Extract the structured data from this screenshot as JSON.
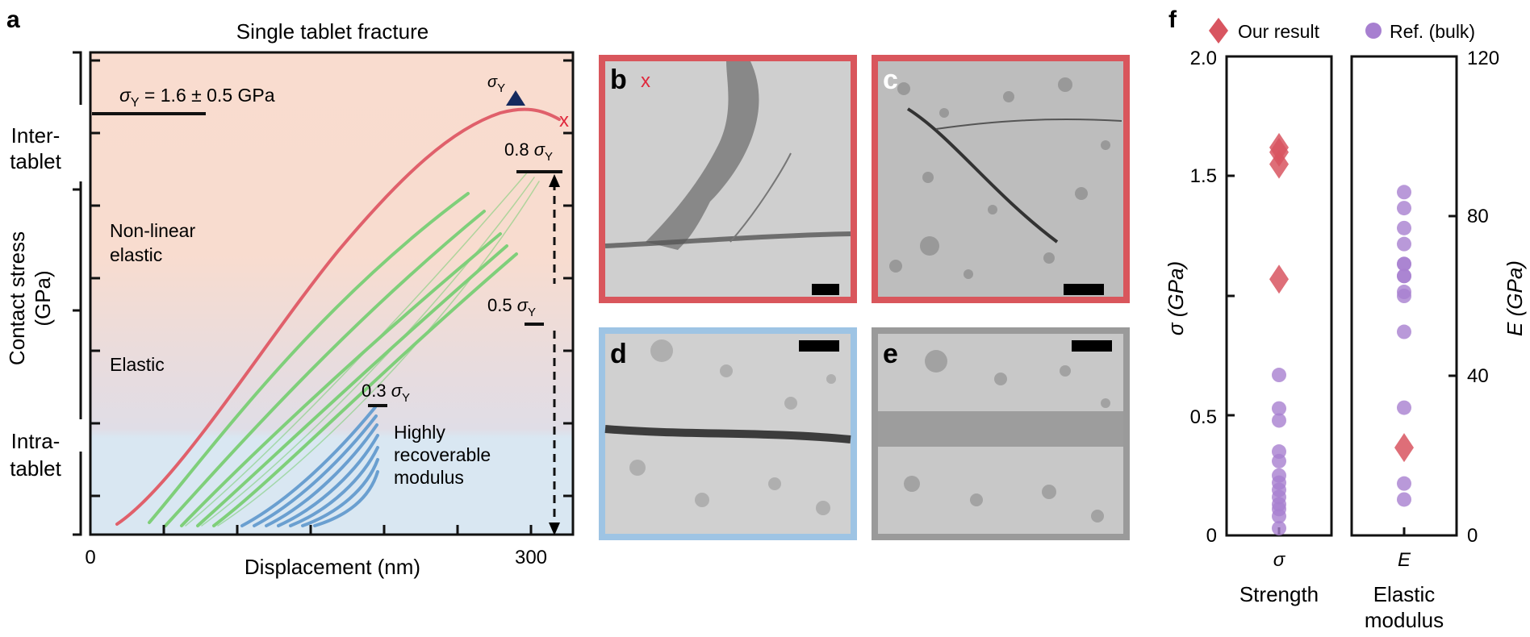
{
  "panel_a": {
    "letter": "a",
    "title": "Single tablet fracture",
    "xlabel": "Displacement (nm)",
    "ylabel_line1": "Contact stress",
    "ylabel_line2": "(GPa)",
    "x_ticks": [
      "0",
      "300"
    ],
    "sigma_y_value": "σY = 1.6 ± 0.5 GPa",
    "sigma_y_value_main": "σ",
    "sigma_y_value_sub": "Y",
    "sigma_y_value_rest": " = 1.6 ± 0.5 GPa",
    "sigma_y_marker_main": "σ",
    "sigma_y_marker_sub": "Y",
    "fracture_marker": "x",
    "level_08": "0.8",
    "level_05": "0.5",
    "level_03": "0.3",
    "sigma_symbol": "σ",
    "sigma_sub": "Y",
    "left_labels": {
      "inter_1": "Inter-",
      "inter_2": "tablet",
      "intra_1": "Intra-",
      "intra_2": "tablet"
    },
    "region_labels": {
      "nonlinear_1": "Non-linear",
      "nonlinear_2": "elastic",
      "elastic": "Elastic",
      "recoverable_1": "Highly",
      "recoverable_2": "recoverable",
      "recoverable_3": "modulus"
    },
    "colors": {
      "loading_to_fracture": "#e0606b",
      "cycles_08": "#7fcf7a",
      "cycles_03": "#6a9fd0",
      "bg_top": "#f9dccf",
      "bg_bottom": "#d9e7f2"
    }
  },
  "tem_panels": [
    {
      "letter": "b",
      "marker": "x",
      "border": "#d9565c"
    },
    {
      "letter": "c",
      "marker": "",
      "border": "#d9565c"
    },
    {
      "letter": "d",
      "marker": "",
      "border": "#9ec4e4"
    },
    {
      "letter": "e",
      "marker": "",
      "border": "#9a9a9a"
    }
  ],
  "panel_f": {
    "letter": "f",
    "legend": {
      "our_result": "Our result",
      "reference": "Ref. (bulk)"
    },
    "colors": {
      "our_result": "#d85560",
      "reference": "#a77fd0"
    },
    "left_axis_label": "σ (GPa)",
    "right_axis_label": "E (GPa)",
    "left_ticks": [
      "2.0",
      "1.5",
      "0.5",
      "0"
    ],
    "right_ticks": [
      "120",
      "80",
      "40",
      "0"
    ],
    "left_xtick": "σ",
    "right_xtick": "E",
    "left_xlabel": "Strength",
    "right_xlabel_1": "Elastic",
    "right_xlabel_2": "modulus"
  },
  "chart_data": {
    "type": "scatter",
    "ylim_strength": [
      0,
      2.0
    ],
    "ylim_modulus": [
      0,
      120
    ],
    "series": [
      {
        "name": "Our result",
        "panel": "Strength",
        "marker": "diamond",
        "values": [
          1.55,
          1.6,
          1.62,
          1.07
        ]
      },
      {
        "name": "Ref. (bulk)",
        "panel": "Strength",
        "marker": "circle",
        "values": [
          0.67,
          0.53,
          0.48,
          0.35,
          0.31,
          0.25,
          0.22,
          0.19,
          0.16,
          0.13,
          0.11,
          0.08,
          0.03
        ]
      },
      {
        "name": "Our result",
        "panel": "Elastic modulus",
        "marker": "diamond",
        "values": [
          22
        ]
      },
      {
        "name": "Ref. (bulk)",
        "panel": "Elastic modulus",
        "marker": "circle",
        "values": [
          86,
          82,
          77,
          73,
          68,
          68,
          65,
          65,
          61,
          60,
          51,
          32,
          13,
          9
        ]
      }
    ]
  }
}
